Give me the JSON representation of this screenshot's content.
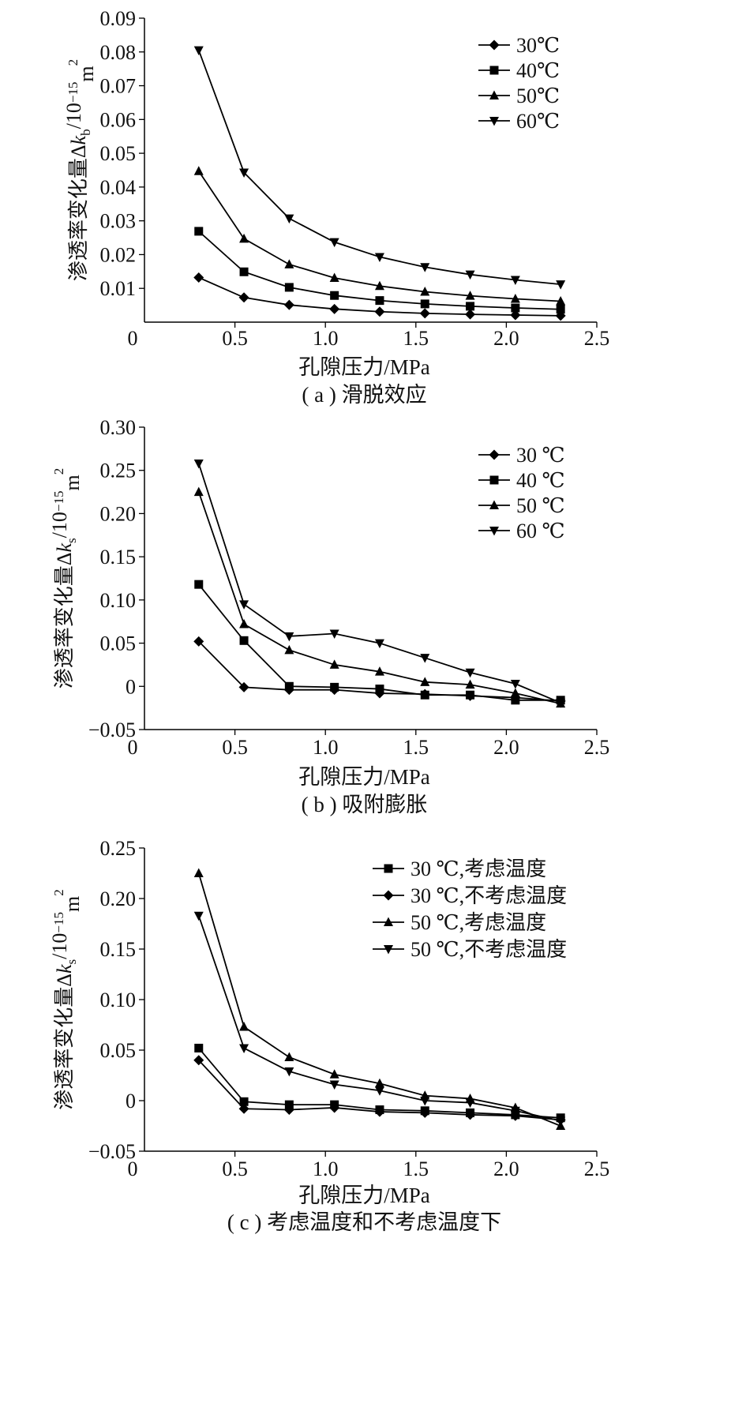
{
  "chart_data": [
    {
      "type": "line",
      "caption": "( a ) 滑脱效应",
      "xlabel": "孔隙压力/MPa",
      "ylabel_parts": {
        "main": "渗透率变化量",
        "symbol": "Δ",
        "var": "k",
        "sub": "b",
        "unit_base": "/10",
        "unit_exp": "−15",
        "unit_tail": "m",
        "unit_tail_exp": "2"
      },
      "xlim": [
        0,
        2.5
      ],
      "ylim": [
        0,
        0.09
      ],
      "xticks": [
        "0",
        "0.5",
        "1.0",
        "1.5",
        "2.0",
        "2.5"
      ],
      "yticks": [
        "0.01",
        "0.02",
        "0.03",
        "0.04",
        "0.05",
        "0.06",
        "0.07",
        "0.08",
        "0.09"
      ],
      "legend_position": "top-right",
      "x": [
        0.3,
        0.55,
        0.8,
        1.05,
        1.3,
        1.55,
        1.8,
        2.05,
        2.3
      ],
      "series": [
        {
          "name": "30℃",
          "marker": "diamond",
          "values": [
            0.0132,
            0.0073,
            0.0051,
            0.0039,
            0.0031,
            0.0026,
            0.0023,
            0.0021,
            0.0019
          ]
        },
        {
          "name": "40℃",
          "marker": "square",
          "values": [
            0.0269,
            0.0149,
            0.0103,
            0.0079,
            0.0064,
            0.0054,
            0.0047,
            0.0042,
            0.0038
          ]
        },
        {
          "name": "50℃",
          "marker": "triangle-up",
          "values": [
            0.0447,
            0.0247,
            0.0171,
            0.0131,
            0.0107,
            0.009,
            0.0078,
            0.0069,
            0.0062
          ]
        },
        {
          "name": "60℃",
          "marker": "triangle-down",
          "values": [
            0.0805,
            0.0443,
            0.0307,
            0.0237,
            0.0193,
            0.0163,
            0.0141,
            0.0125,
            0.0112
          ]
        }
      ]
    },
    {
      "type": "line",
      "caption": "( b ) 吸附膨胀",
      "xlabel": "孔隙压力/MPa",
      "ylabel_parts": {
        "main": "渗透率变化量",
        "symbol": "Δ",
        "var": "k",
        "sub": "s",
        "unit_base": "/10",
        "unit_exp": "−15",
        "unit_tail": "m",
        "unit_tail_exp": "2"
      },
      "xlim": [
        0,
        2.5
      ],
      "ylim": [
        -0.05,
        0.3
      ],
      "xticks": [
        "0",
        "0.5",
        "1.0",
        "1.5",
        "2.0",
        "2.5"
      ],
      "yticks": [
        "−0.05",
        "0",
        "0.05",
        "0.10",
        "0.15",
        "0.20",
        "0.25",
        "0.30"
      ],
      "legend_position": "top-right",
      "x": [
        0.3,
        0.55,
        0.8,
        1.05,
        1.3,
        1.55,
        1.8,
        2.05,
        2.3
      ],
      "series": [
        {
          "name": "30 ℃",
          "marker": "diamond",
          "values": [
            0.052,
            -0.001,
            -0.004,
            -0.004,
            -0.008,
            -0.009,
            -0.011,
            -0.013,
            -0.017
          ]
        },
        {
          "name": "40 ℃",
          "marker": "square",
          "values": [
            0.118,
            0.053,
            0.0,
            -0.001,
            -0.003,
            -0.01,
            -0.01,
            -0.016,
            -0.016
          ]
        },
        {
          "name": "50 ℃",
          "marker": "triangle-up",
          "values": [
            0.225,
            0.072,
            0.042,
            0.025,
            0.017,
            0.005,
            0.002,
            -0.008,
            -0.02
          ]
        },
        {
          "name": "60 ℃",
          "marker": "triangle-down",
          "values": [
            0.258,
            0.095,
            0.058,
            0.061,
            0.05,
            0.033,
            0.016,
            0.003,
            -0.019
          ]
        }
      ]
    },
    {
      "type": "line",
      "caption": "( c ) 考虑温度和不考虑温度下",
      "xlabel": "孔隙压力/MPa",
      "ylabel_parts": {
        "main": "渗透率变化量",
        "symbol": "Δ",
        "var": "k",
        "sub": "s",
        "unit_base": "/10",
        "unit_exp": "−15",
        "unit_tail": "m",
        "unit_tail_exp": "2"
      },
      "xlim": [
        0,
        2.5
      ],
      "ylim": [
        -0.05,
        0.25
      ],
      "xticks": [
        "0",
        "0.5",
        "1.0",
        "1.5",
        "2.0",
        "2.5"
      ],
      "yticks": [
        "−0.05",
        "0",
        "0.05",
        "0.10",
        "0.15",
        "0.20",
        "0.25"
      ],
      "legend_position": "top-right",
      "x": [
        0.3,
        0.55,
        0.8,
        1.05,
        1.3,
        1.55,
        1.8,
        2.05,
        2.3
      ],
      "series": [
        {
          "name": "30 ℃,考虑温度",
          "marker": "square",
          "values": [
            0.052,
            -0.001,
            -0.004,
            -0.004,
            -0.009,
            -0.01,
            -0.012,
            -0.014,
            -0.017
          ]
        },
        {
          "name": "30 ℃,不考虑温度",
          "marker": "diamond",
          "values": [
            0.04,
            -0.008,
            -0.009,
            -0.007,
            -0.011,
            -0.012,
            -0.014,
            -0.015,
            -0.019
          ]
        },
        {
          "name": "50 ℃,考虑温度",
          "marker": "triangle-up",
          "values": [
            0.225,
            0.073,
            0.043,
            0.026,
            0.017,
            0.005,
            0.002,
            -0.007,
            -0.025
          ]
        },
        {
          "name": "50 ℃,不考虑温度",
          "marker": "triangle-down",
          "values": [
            0.183,
            0.052,
            0.029,
            0.016,
            0.01,
            0.0,
            -0.002,
            -0.01,
            -0.02
          ]
        }
      ]
    }
  ]
}
